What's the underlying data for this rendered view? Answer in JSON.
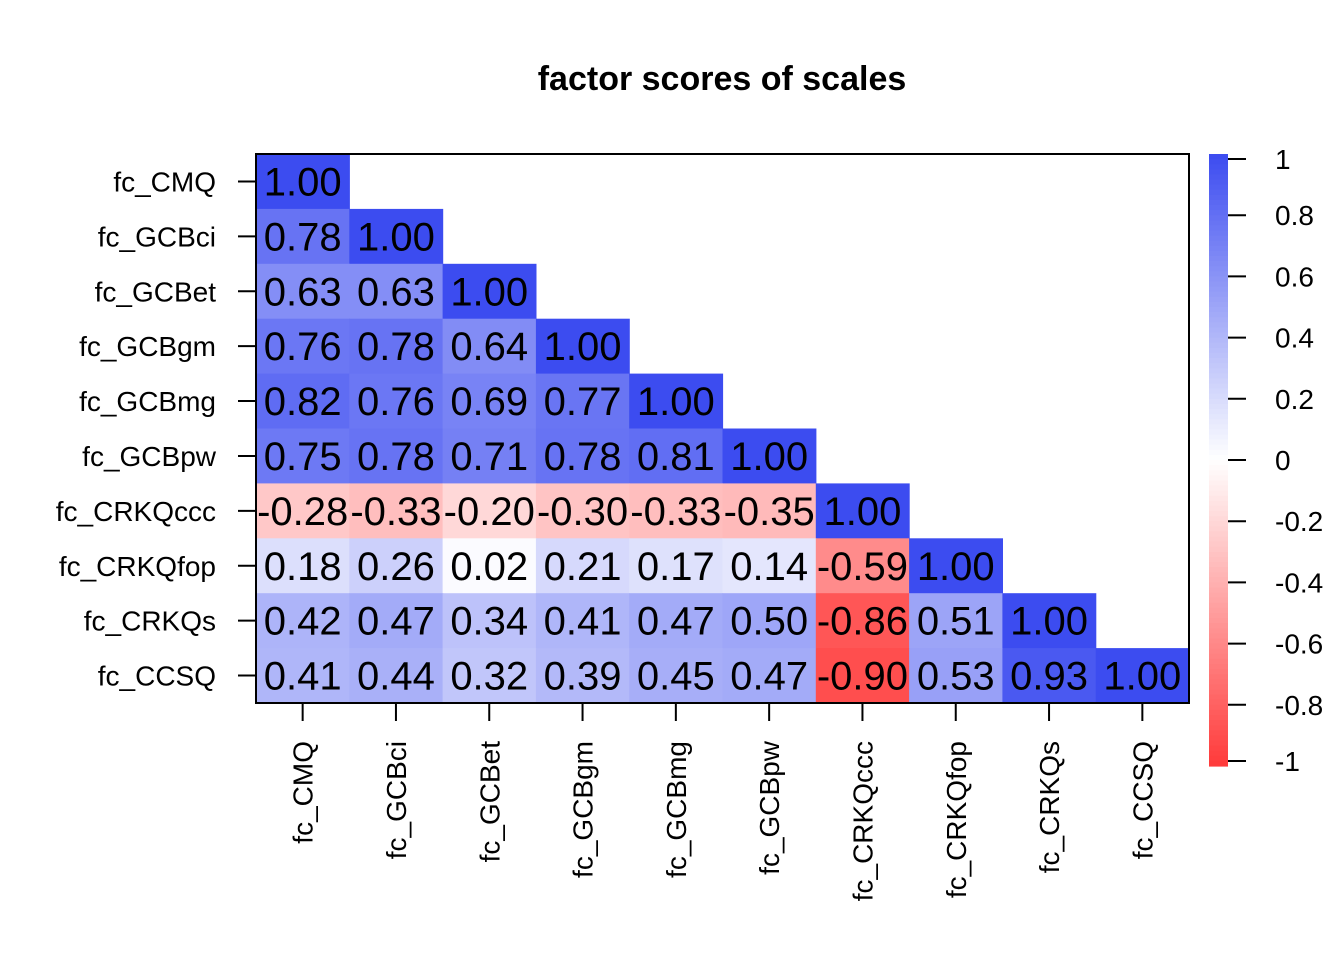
{
  "chart_data": {
    "type": "heatmap",
    "title": "factor scores of scales",
    "variables": [
      "fc_CMQ",
      "fc_GCBci",
      "fc_GCBet",
      "fc_GCBgm",
      "fc_GCBmg",
      "fc_GCBpw",
      "fc_CRKQccc",
      "fc_CRKQfop",
      "fc_CRKQs",
      "fc_CCSQ"
    ],
    "lower_triangle": [
      [
        "1.00"
      ],
      [
        "0.78",
        "1.00"
      ],
      [
        "0.63",
        "0.63",
        "1.00"
      ],
      [
        "0.76",
        "0.78",
        "0.64",
        "1.00"
      ],
      [
        "0.82",
        "0.76",
        "0.69",
        "0.77",
        "1.00"
      ],
      [
        "0.75",
        "0.78",
        "0.71",
        "0.78",
        "0.81",
        "1.00"
      ],
      [
        "-0.28",
        "-0.33",
        "-0.20",
        "-0.30",
        "-0.33",
        "-0.35",
        "1.00"
      ],
      [
        "0.18",
        "0.26",
        "0.02",
        "0.21",
        "0.17",
        "0.14",
        "-0.59",
        "1.00"
      ],
      [
        "0.42",
        "0.47",
        "0.34",
        "0.41",
        "0.47",
        "0.50",
        "-0.86",
        "0.51",
        "1.00"
      ],
      [
        "0.41",
        "0.44",
        "0.32",
        "0.39",
        "0.45",
        "0.47",
        "-0.90",
        "0.53",
        "0.93",
        "1.00"
      ]
    ],
    "color_scale": {
      "min": -1,
      "max": 1,
      "low_color": "#ff3a3a",
      "mid_color": "#ffffff",
      "high_color": "#3c4cf0",
      "ticks": [
        "1",
        "0.8",
        "0.6",
        "0.4",
        "0.2",
        "0",
        "-0.2",
        "-0.4",
        "-0.6",
        "-0.8",
        "-1"
      ]
    }
  }
}
